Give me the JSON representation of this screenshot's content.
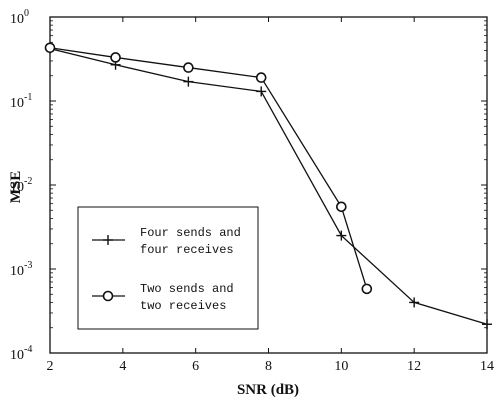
{
  "chart_data": {
    "type": "line",
    "xlabel": "SNR (dB)",
    "ylabel": "MSE",
    "xlim": [
      2,
      14
    ],
    "ylim": [
      0.0001,
      1
    ],
    "y_scale": "log",
    "grid": false,
    "legend_position": "lower-left",
    "x_ticks": [
      "2",
      "4",
      "6",
      "8",
      "10",
      "12",
      "14"
    ],
    "y_ticks": [
      {
        "base": "10",
        "exp": "0"
      },
      {
        "base": "10",
        "exp": "-1"
      },
      {
        "base": "10",
        "exp": "-2"
      },
      {
        "base": "10",
        "exp": "-3"
      },
      {
        "base": "10",
        "exp": "-4"
      }
    ],
    "series": [
      {
        "name_lines": [
          "Four sends and",
          "four receives"
        ],
        "marker": "plus",
        "x": [
          2,
          3.8,
          5.8,
          7.8,
          10,
          12,
          14
        ],
        "y": [
          0.42,
          0.27,
          0.17,
          0.13,
          0.0025,
          0.0004,
          0.00022
        ]
      },
      {
        "name_lines": [
          "Two sends and",
          "two receives"
        ],
        "marker": "circle",
        "x": [
          2,
          3.8,
          5.8,
          7.8,
          10,
          10.7
        ],
        "y": [
          0.43,
          0.33,
          0.25,
          0.19,
          0.0055,
          0.00058
        ]
      }
    ]
  }
}
